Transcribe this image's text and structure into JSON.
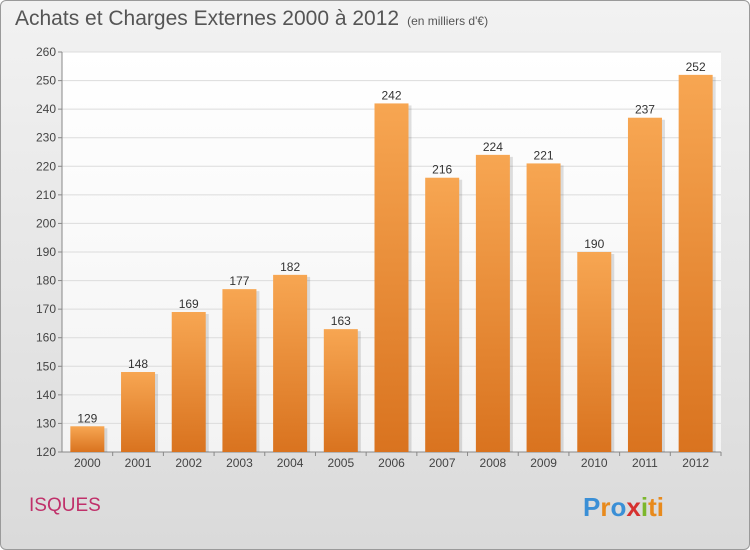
{
  "header": {
    "title": "Achats et Charges Externes 2000 à 2012",
    "subtitle": "(en milliers d'€)"
  },
  "footer": {
    "commune": "ISQUES",
    "logo_letters": [
      "P",
      "r",
      "o",
      "x",
      "i",
      "ti"
    ]
  },
  "colors": {
    "bar_top": "#f7a652",
    "bar_bottom": "#d9731f",
    "commune_text": "#c0306a"
  },
  "chart_data": {
    "type": "bar",
    "title": "Achats et Charges Externes 2000 à 2012",
    "subtitle": "(en milliers d'€)",
    "xlabel": "",
    "ylabel": "",
    "categories": [
      "2000",
      "2001",
      "2002",
      "2003",
      "2004",
      "2005",
      "2006",
      "2007",
      "2008",
      "2009",
      "2010",
      "2011",
      "2012"
    ],
    "values": [
      129,
      148,
      169,
      177,
      182,
      163,
      242,
      216,
      224,
      221,
      190,
      237,
      252
    ],
    "ylim": [
      120,
      260
    ],
    "yticks": [
      120,
      130,
      140,
      150,
      160,
      170,
      180,
      190,
      200,
      210,
      220,
      230,
      240,
      250,
      260
    ],
    "grid": true,
    "data_labels": true
  }
}
